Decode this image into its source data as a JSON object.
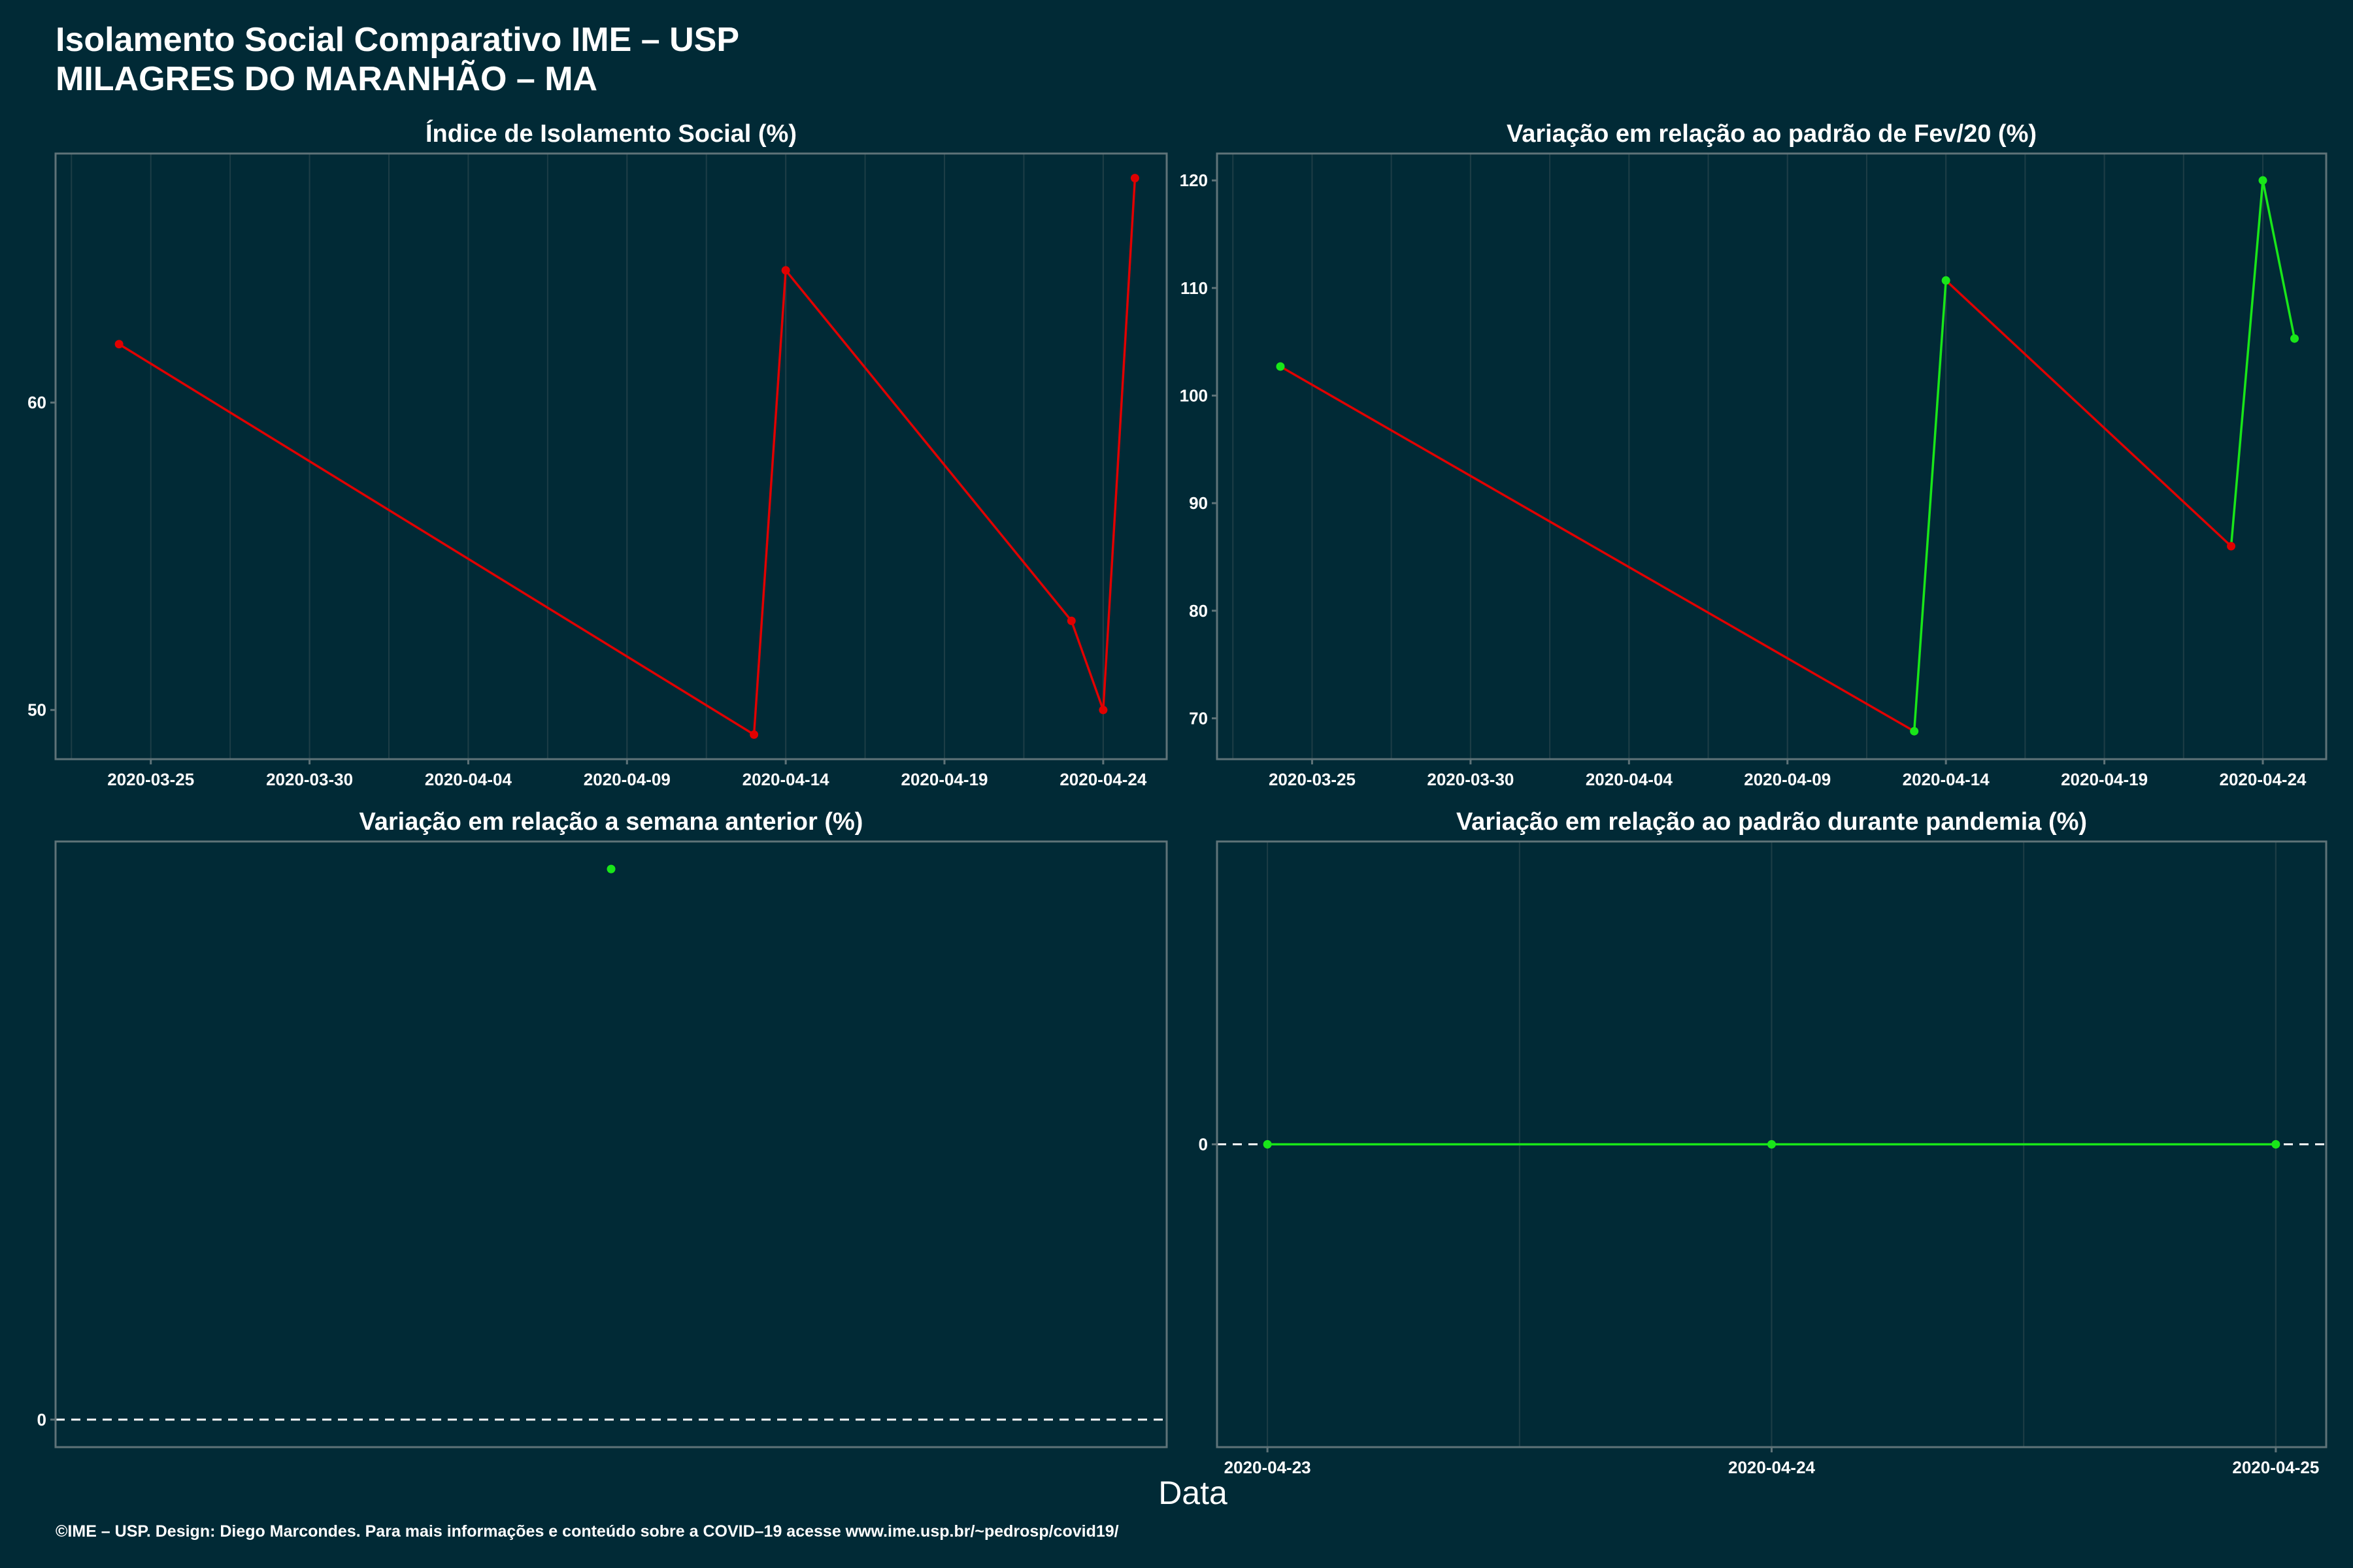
{
  "title_line1": "Isolamento Social Comparativo IME – USP",
  "title_line2": "MILAGRES DO MARANHÃO – MA",
  "xaxis_label": "Data",
  "caption": "©IME – USP. Design: Diego Marcondes. Para mais informações e conteúdo sobre a COVID–19 acesse www.ime.usp.br/~pedrosp/covid19/",
  "colors": {
    "background": "#012a36",
    "panel_border": "#5f7378",
    "grid": "#1d3d46",
    "text": "#ffffff",
    "decrease": "#e00000",
    "increase": "#19e619",
    "reference_line": "#ffffff"
  },
  "chart_data": [
    {
      "type": "line",
      "title": "Índice de Isolamento Social (%)",
      "x": [
        "2020-03-24",
        "2020-04-13",
        "2020-04-14",
        "2020-04-23",
        "2020-04-24",
        "2020-04-25"
      ],
      "y": [
        61.9,
        49.2,
        64.3,
        52.9,
        50.0,
        67.3
      ],
      "segment_colors": [
        "#e00000",
        "#e00000",
        "#e00000",
        "#e00000",
        "#e00000"
      ],
      "point_colors": [
        "#e00000",
        "#e00000",
        "#e00000",
        "#e00000",
        "#e00000",
        "#e00000"
      ],
      "xlim": [
        "2020-03-22",
        "2020-04-26"
      ],
      "ylim": [
        48.4,
        68.1
      ],
      "xticks": [
        "2020-03-25",
        "2020-03-30",
        "2020-04-04",
        "2020-04-09",
        "2020-04-14",
        "2020-04-19",
        "2020-04-24"
      ],
      "yticks": [
        50,
        60
      ],
      "grid": true
    },
    {
      "type": "line",
      "title": "Variação em relação ao padrão de Fev/20 (%)",
      "x": [
        "2020-03-24",
        "2020-04-13",
        "2020-04-14",
        "2020-04-23",
        "2020-04-24",
        "2020-04-25"
      ],
      "y": [
        102.7,
        68.8,
        110.7,
        86.0,
        120.0,
        105.3
      ],
      "segment_colors": [
        "#e00000",
        "#19e619",
        "#e00000",
        "#19e619",
        "#19e619"
      ],
      "point_colors": [
        "#19e619",
        "#19e619",
        "#19e619",
        "#e00000",
        "#19e619",
        "#19e619"
      ],
      "xlim": [
        "2020-03-22",
        "2020-04-26"
      ],
      "ylim": [
        66.2,
        122.5
      ],
      "xticks": [
        "2020-03-25",
        "2020-03-30",
        "2020-04-04",
        "2020-04-09",
        "2020-04-14",
        "2020-04-19",
        "2020-04-24"
      ],
      "yticks": [
        70,
        80,
        90,
        100,
        110,
        120
      ],
      "grid": true
    },
    {
      "type": "scatter",
      "title": "Variação em relação a semana anterior (%)",
      "x": [
        0
      ],
      "y": [
        100
      ],
      "point_colors": [
        "#19e619"
      ],
      "xlim": [
        -1,
        1
      ],
      "ylim": [
        -5,
        105
      ],
      "xticks": [],
      "yticks": [
        0
      ],
      "reference_line_y": 0,
      "grid": false
    },
    {
      "type": "line",
      "title": "Variação em relação ao padrão durante pandemia (%)",
      "x": [
        "2020-04-23",
        "2020-04-24",
        "2020-04-25"
      ],
      "y": [
        0,
        0,
        0
      ],
      "segment_colors": [
        "#19e619",
        "#19e619"
      ],
      "point_colors": [
        "#19e619",
        "#19e619",
        "#19e619"
      ],
      "xlim": [
        "2020-04-22.9",
        "2020-04-25.1"
      ],
      "ylim": [
        -1,
        1
      ],
      "xticks": [
        "2020-04-23",
        "2020-04-24",
        "2020-04-25"
      ],
      "yticks": [
        0
      ],
      "reference_line_y": 0,
      "grid": true
    }
  ]
}
